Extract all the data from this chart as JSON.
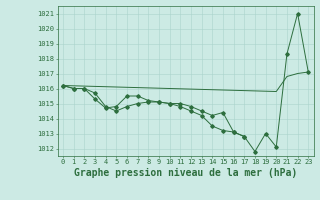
{
  "title": "Graphe pression niveau de la mer (hPa)",
  "xlabel_hours": [
    0,
    1,
    2,
    3,
    4,
    5,
    6,
    7,
    8,
    9,
    10,
    11,
    12,
    13,
    14,
    15,
    16,
    17,
    18,
    19,
    20,
    21,
    22,
    23
  ],
  "ylim": [
    1011.5,
    1021.5
  ],
  "yticks": [
    1012,
    1013,
    1014,
    1015,
    1016,
    1017,
    1018,
    1019,
    1020,
    1021
  ],
  "line1": [
    1016.2,
    1016.0,
    1016.0,
    1015.7,
    1014.8,
    1014.5,
    1014.8,
    1015.0,
    1015.1,
    1015.1,
    1015.0,
    1015.0,
    1014.8,
    1014.5,
    1014.2,
    1014.4,
    1013.1,
    1012.8,
    1011.8,
    1013.0,
    1012.1,
    1018.3,
    1021.0,
    1017.1
  ],
  "line2": [
    1016.2,
    1016.0,
    1016.0,
    1015.3,
    1014.7,
    1014.8,
    1015.5,
    1015.5,
    1015.2,
    1015.1,
    1015.0,
    1014.8,
    1014.5,
    1014.2,
    1013.5,
    1013.2,
    1013.1,
    1012.8,
    null,
    null,
    null,
    null,
    null,
    null
  ],
  "line3_straight": [
    1016.2,
    1016.18,
    1016.16,
    1016.14,
    1016.12,
    1016.1,
    1016.08,
    1016.06,
    1016.04,
    1016.02,
    1016.0,
    1015.98,
    1015.96,
    1015.94,
    1015.92,
    1015.9,
    1015.88,
    1015.86,
    1015.84,
    1015.82,
    1015.8,
    1016.8,
    1017.0,
    1017.1
  ],
  "bg_color": "#cceae4",
  "grid_color": "#aad4cc",
  "line_color": "#2d6e3e",
  "marker": "D",
  "marker_size": 1.8,
  "title_fontsize": 7,
  "tick_fontsize": 5,
  "linewidth": 0.7
}
